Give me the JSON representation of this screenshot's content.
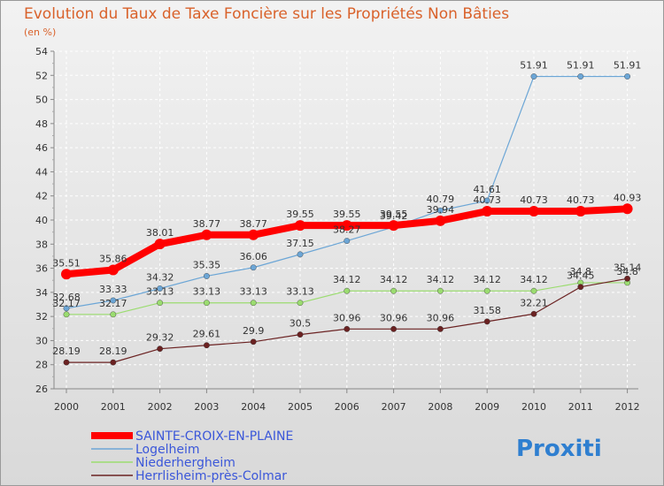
{
  "chart_data": {
    "type": "line",
    "title": "Evolution du Taux de Taxe Foncière sur les Propriétés Non Bâties",
    "subtitle": "(en %)",
    "x": [
      "2000",
      "2001",
      "2002",
      "2003",
      "2004",
      "2005",
      "2006",
      "2007",
      "2008",
      "2009",
      "2010",
      "2011",
      "2012"
    ],
    "ylim": [
      26,
      54
    ],
    "yticks": [
      "26",
      "28",
      "30",
      "32",
      "34",
      "36",
      "38",
      "40",
      "42",
      "44",
      "46",
      "48",
      "50",
      "52",
      "54"
    ],
    "grid": true,
    "legend_position": "bottom-left",
    "series": [
      {
        "name": "SAINTE-CROIX-EN-PLAINE",
        "color": "#ff0000",
        "values": [
          35.51,
          35.86,
          38.01,
          38.77,
          38.77,
          39.55,
          39.55,
          39.55,
          39.94,
          40.73,
          40.73,
          40.73,
          40.93
        ],
        "labels": [
          "35.51",
          "35.86",
          "38.01",
          "38.77",
          "38.77",
          "39.55",
          "39.55",
          "39.55",
          "39.94",
          "40.73",
          "40.73",
          "40.73",
          "40.93"
        ]
      },
      {
        "name": "Logelheim",
        "color": "#6ca6d6",
        "values": [
          32.68,
          33.33,
          34.32,
          35.35,
          36.06,
          37.15,
          38.27,
          39.42,
          40.79,
          41.61,
          51.91,
          51.91,
          51.91
        ],
        "labels": [
          "32.68",
          "33.33",
          "34.32",
          "35.35",
          "36.06",
          "37.15",
          "38.27",
          "39.42",
          "40.79",
          "41.61",
          "51.91",
          "51.91",
          "51.91"
        ]
      },
      {
        "name": "Niederhergheim",
        "color": "#9bdc70",
        "values": [
          32.17,
          32.17,
          33.13,
          33.13,
          33.13,
          33.13,
          34.12,
          34.12,
          34.12,
          34.12,
          34.12,
          34.8,
          34.8
        ],
        "labels": [
          "32.17",
          "32.17",
          "33.13",
          "33.13",
          "33.13",
          "33.13",
          "34.12",
          "34.12",
          "34.12",
          "34.12",
          "34.12",
          "34.8",
          "34.8"
        ]
      },
      {
        "name": "Herrlisheim-près-Colmar",
        "color": "#6b2222",
        "values": [
          28.19,
          28.19,
          29.32,
          29.61,
          29.9,
          30.5,
          30.96,
          30.96,
          30.96,
          31.58,
          32.21,
          34.45,
          35.14
        ],
        "labels": [
          "28.19",
          "28.19",
          "29.32",
          "29.61",
          "29.9",
          "30.5",
          "30.96",
          "30.96",
          "30.96",
          "31.58",
          "32.21",
          "34.45",
          "35.14"
        ]
      }
    ]
  },
  "logo": {
    "text": "Proxiti"
  }
}
